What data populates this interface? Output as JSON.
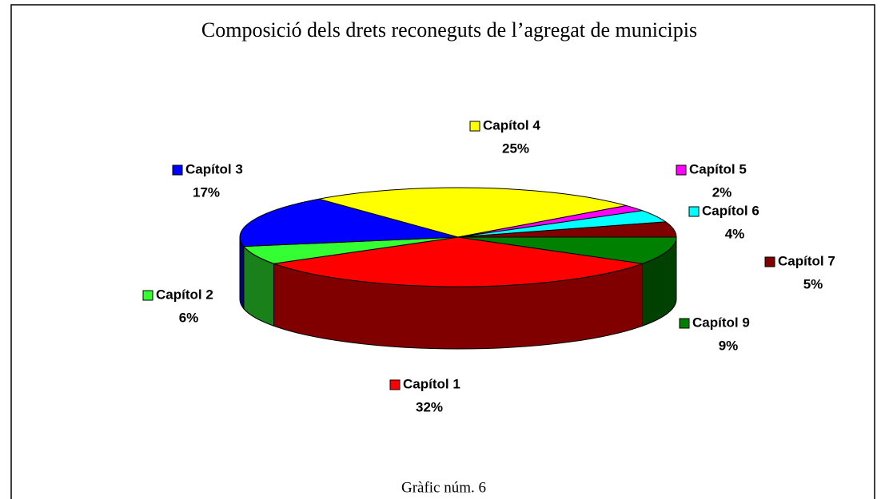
{
  "chart_data": {
    "type": "pie3d",
    "title": "Composició dels drets reconeguts de l’agregat de municipis",
    "caption": "Gràfic núm. 6",
    "categories": [
      "Capítol 1",
      "Capítol 2",
      "Capítol 3",
      "Capítol 4",
      "Capítol 5",
      "Capítol 6",
      "Capítol 7",
      "Capítol 9"
    ],
    "values": [
      32,
      6,
      17,
      25,
      2,
      4,
      5,
      9
    ],
    "value_labels": [
      "32%",
      "6%",
      "17%",
      "25%",
      "2%",
      "4%",
      "5%",
      "9%"
    ],
    "colors": [
      "#ff0000",
      "#33ff33",
      "#0000ff",
      "#ffff00",
      "#ff00ff",
      "#00ffff",
      "#800000",
      "#008000"
    ]
  }
}
